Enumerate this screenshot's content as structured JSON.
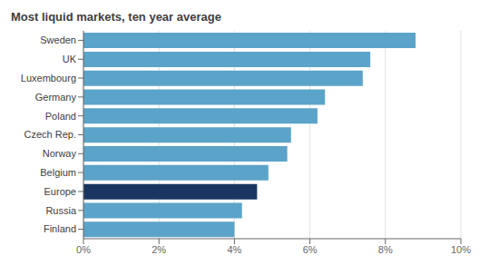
{
  "chart_data": {
    "type": "bar",
    "title": "Most liquid markets, ten year average",
    "orientation": "horizontal",
    "categories": [
      "Sweden",
      "UK",
      "Luxembourg",
      "Germany",
      "Poland",
      "Czech Rep.",
      "Norway",
      "Belgium",
      "Europe",
      "Russia",
      "Finland"
    ],
    "values": [
      0.088,
      0.076,
      0.074,
      0.064,
      0.062,
      0.055,
      0.054,
      0.049,
      0.046,
      0.042,
      0.04
    ],
    "colors": [
      "#5ba3c9",
      "#5ba3c9",
      "#5ba3c9",
      "#5ba3c9",
      "#5ba3c9",
      "#5ba3c9",
      "#5ba3c9",
      "#5ba3c9",
      "#1a3660",
      "#5ba3c9",
      "#5ba3c9"
    ],
    "xlim": [
      0,
      0.1
    ],
    "xticks": [
      {
        "value": 0.0,
        "label": "0%"
      },
      {
        "value": 0.02,
        "label": "2%"
      },
      {
        "value": 0.04,
        "label": "4%"
      },
      {
        "value": 0.06,
        "label": "6%"
      },
      {
        "value": 0.08,
        "label": "8%"
      },
      {
        "value": 0.1,
        "label": "10%"
      }
    ],
    "grid": true
  }
}
